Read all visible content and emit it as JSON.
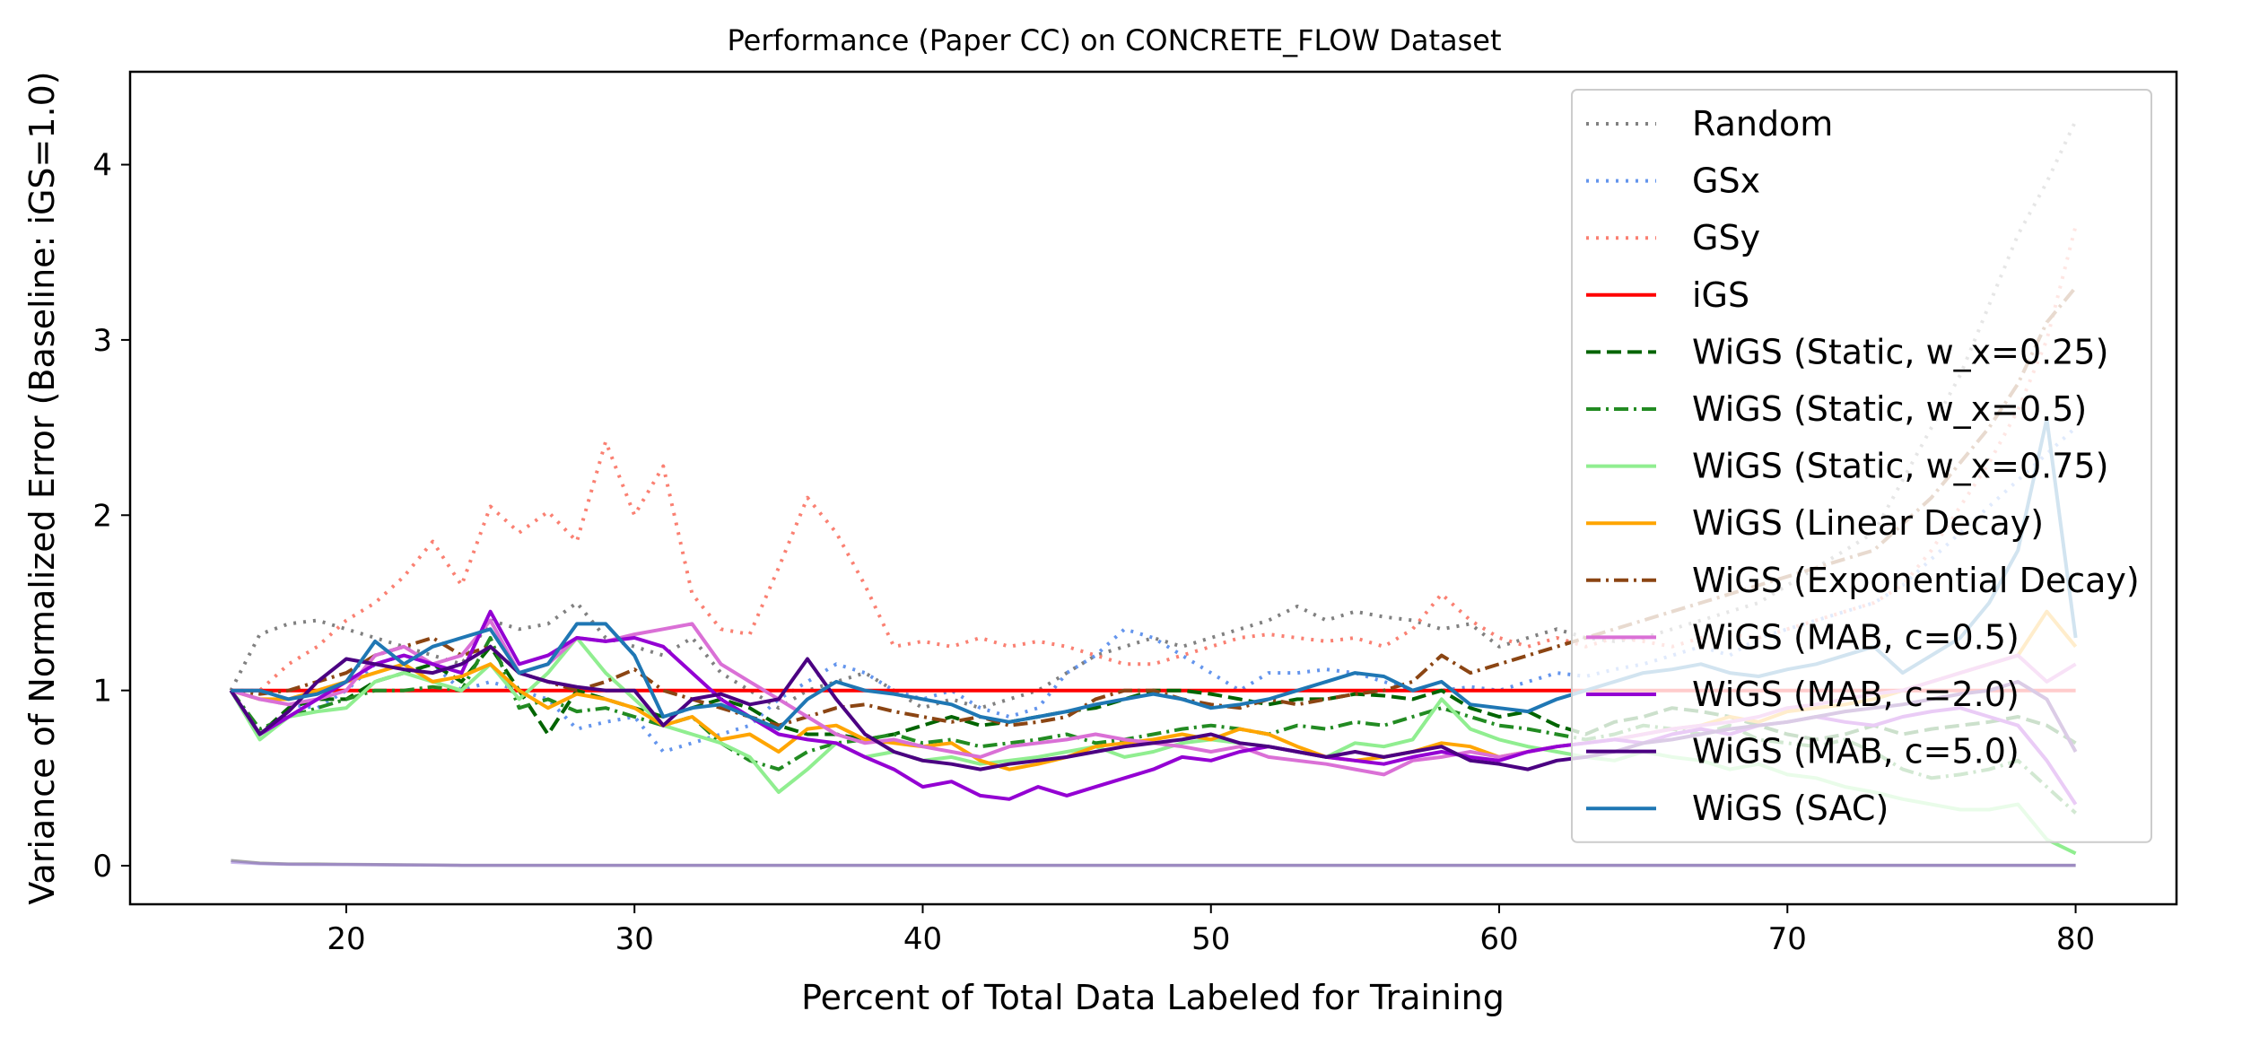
{
  "chart_data": {
    "type": "line",
    "title": "Performance (Paper CC) on CONCRETE_FLOW Dataset",
    "xlabel": "Percent of Total Data Labeled for Training",
    "ylabel": "Variance of Normalized Error (Baseline: iGS=1.0)",
    "xlim": [
      12.5,
      83.5
    ],
    "ylim": [
      -0.22,
      4.53
    ],
    "xticks": [
      20,
      30,
      40,
      50,
      60,
      70,
      80
    ],
    "yticks": [
      0,
      1,
      2,
      3,
      4
    ],
    "grid": false,
    "legend_position": "top-right",
    "x": [
      16,
      17,
      18,
      19,
      20,
      21,
      22,
      23,
      24,
      25,
      26,
      27,
      28,
      29,
      30,
      31,
      32,
      33,
      34,
      35,
      36,
      37,
      38,
      39,
      40,
      41,
      42,
      43,
      44,
      45,
      46,
      47,
      48,
      49,
      50,
      51,
      52,
      53,
      54,
      55,
      56,
      57,
      58,
      59,
      60,
      61,
      62,
      63,
      64,
      65,
      66,
      67,
      68,
      69,
      70,
      71,
      72,
      73,
      74,
      75,
      76,
      77,
      78,
      79,
      80
    ],
    "series": [
      {
        "name": "Random",
        "color": "#808080",
        "dash": "dot",
        "values": [
          1.0,
          1.32,
          1.38,
          1.4,
          1.35,
          1.3,
          1.25,
          1.2,
          1.15,
          1.4,
          1.35,
          1.38,
          1.5,
          1.3,
          1.25,
          1.2,
          1.3,
          1.1,
          1.0,
          0.9,
          1.0,
          1.05,
          1.1,
          1.0,
          0.9,
          0.95,
          0.9,
          0.95,
          1.0,
          1.1,
          1.2,
          1.25,
          1.3,
          1.25,
          1.3,
          1.35,
          1.4,
          1.48,
          1.4,
          1.45,
          1.42,
          1.4,
          1.35,
          1.38,
          1.25,
          1.3,
          1.35,
          1.3,
          1.28,
          1.3,
          1.35,
          1.4,
          1.45,
          1.5,
          1.6,
          1.7,
          1.8,
          1.9,
          2.2,
          2.5,
          2.8,
          3.2,
          3.6,
          3.9,
          4.25
        ]
      },
      {
        "name": "GSx",
        "color": "#6495ED",
        "dash": "dot",
        "values": [
          1.0,
          0.95,
          0.92,
          0.9,
          1.0,
          1.15,
          1.2,
          1.15,
          1.0,
          1.05,
          1.0,
          0.95,
          0.78,
          0.82,
          0.85,
          0.65,
          0.7,
          0.75,
          0.8,
          0.95,
          1.05,
          1.15,
          1.1,
          1.0,
          0.95,
          1.0,
          0.9,
          0.85,
          0.9,
          1.1,
          1.2,
          1.35,
          1.3,
          1.2,
          1.1,
          1.0,
          1.1,
          1.1,
          1.12,
          1.1,
          1.05,
          1.0,
          1.0,
          1.02,
          1.0,
          1.05,
          1.1,
          1.08,
          1.12,
          1.15,
          1.2,
          1.25,
          1.2,
          1.3,
          1.35,
          1.4,
          1.45,
          1.5,
          1.6,
          1.75,
          1.9,
          2.05,
          2.2,
          2.35,
          2.5
        ]
      },
      {
        "name": "GSy",
        "color": "#FA8072",
        "dash": "dot",
        "values": [
          1.0,
          1.0,
          1.15,
          1.25,
          1.4,
          1.5,
          1.65,
          1.85,
          1.6,
          2.05,
          1.9,
          2.02,
          1.85,
          2.42,
          2.0,
          2.28,
          1.55,
          1.35,
          1.32,
          1.7,
          2.1,
          1.9,
          1.6,
          1.25,
          1.28,
          1.25,
          1.3,
          1.25,
          1.28,
          1.25,
          1.2,
          1.15,
          1.15,
          1.2,
          1.25,
          1.3,
          1.32,
          1.3,
          1.28,
          1.3,
          1.25,
          1.35,
          1.55,
          1.4,
          1.3,
          1.25,
          1.3,
          1.25,
          1.3,
          1.28,
          1.25,
          1.3,
          1.32,
          1.3,
          1.35,
          1.4,
          1.45,
          1.5,
          1.6,
          1.8,
          2.05,
          2.3,
          2.6,
          3.0,
          3.65
        ]
      },
      {
        "name": "iGS",
        "color": "#FF0000",
        "dash": "solid",
        "values": [
          1,
          1,
          1,
          1,
          1,
          1,
          1,
          1,
          1,
          1,
          1,
          1,
          1,
          1,
          1,
          1,
          1,
          1,
          1,
          1,
          1,
          1,
          1,
          1,
          1,
          1,
          1,
          1,
          1,
          1,
          1,
          1,
          1,
          1,
          1,
          1,
          1,
          1,
          1,
          1,
          1,
          1,
          1,
          1,
          1,
          1,
          1,
          1,
          1,
          1,
          1,
          1,
          1,
          1,
          1,
          1,
          1,
          1,
          1,
          1,
          1,
          1,
          1,
          1,
          1
        ]
      },
      {
        "name": "WiGS (Static, w_x=0.25)",
        "color": "#006400",
        "dash": "dash",
        "values": [
          1.0,
          0.75,
          0.9,
          0.95,
          0.95,
          1.05,
          1.1,
          1.15,
          1.05,
          1.25,
          1.0,
          0.75,
          1.0,
          0.95,
          0.9,
          0.85,
          0.9,
          0.95,
          0.9,
          0.8,
          0.75,
          0.75,
          0.72,
          0.75,
          0.8,
          0.85,
          0.8,
          0.82,
          0.85,
          0.88,
          0.9,
          0.95,
          1.0,
          1.0,
          0.98,
          0.95,
          0.92,
          0.95,
          0.95,
          0.98,
          0.97,
          0.95,
          1.0,
          0.9,
          0.85,
          0.88,
          0.8,
          0.75,
          0.82,
          0.85,
          0.9,
          0.88,
          0.85,
          0.8,
          0.75,
          0.72,
          0.75,
          0.8,
          0.75,
          0.78,
          0.8,
          0.82,
          0.85,
          0.8,
          0.7
        ]
      },
      {
        "name": "WiGS (Static, w_x=0.5)",
        "color": "#228B22",
        "dash": "dashdot",
        "values": [
          1.0,
          0.78,
          0.85,
          0.9,
          0.95,
          1.0,
          1.0,
          1.02,
          1.0,
          1.3,
          0.9,
          0.95,
          0.88,
          0.9,
          0.85,
          0.8,
          0.85,
          0.7,
          0.6,
          0.55,
          0.65,
          0.7,
          0.72,
          0.75,
          0.7,
          0.72,
          0.68,
          0.7,
          0.72,
          0.75,
          0.7,
          0.72,
          0.75,
          0.78,
          0.8,
          0.78,
          0.75,
          0.8,
          0.78,
          0.82,
          0.8,
          0.85,
          0.9,
          0.85,
          0.8,
          0.78,
          0.75,
          0.72,
          0.75,
          0.8,
          0.78,
          0.75,
          0.8,
          0.72,
          0.7,
          0.68,
          0.72,
          0.65,
          0.55,
          0.5,
          0.52,
          0.55,
          0.6,
          0.45,
          0.3
        ]
      },
      {
        "name": "WiGS (Static, w_x=0.75)",
        "color": "#90EE90",
        "dash": "solid",
        "values": [
          1.0,
          0.72,
          0.85,
          0.88,
          0.9,
          1.05,
          1.1,
          1.05,
          1.0,
          1.15,
          0.95,
          1.1,
          1.3,
          1.1,
          0.95,
          0.8,
          0.75,
          0.7,
          0.62,
          0.42,
          0.55,
          0.7,
          0.62,
          0.65,
          0.6,
          0.62,
          0.58,
          0.6,
          0.62,
          0.65,
          0.68,
          0.62,
          0.65,
          0.7,
          0.72,
          0.7,
          0.68,
          0.65,
          0.62,
          0.7,
          0.68,
          0.72,
          0.95,
          0.78,
          0.72,
          0.68,
          0.65,
          0.62,
          0.6,
          0.65,
          0.62,
          0.6,
          0.55,
          0.58,
          0.52,
          0.5,
          0.45,
          0.42,
          0.38,
          0.35,
          0.32,
          0.32,
          0.35,
          0.15,
          0.07
        ]
      },
      {
        "name": "WiGS (Linear Decay)",
        "color": "#FFA500",
        "dash": "solid",
        "values": [
          1.0,
          0.95,
          0.95,
          1.0,
          1.05,
          1.1,
          1.15,
          1.05,
          1.08,
          1.15,
          1.0,
          0.9,
          0.98,
          0.95,
          0.9,
          0.8,
          0.85,
          0.72,
          0.75,
          0.65,
          0.78,
          0.8,
          0.72,
          0.7,
          0.68,
          0.7,
          0.6,
          0.55,
          0.58,
          0.62,
          0.68,
          0.7,
          0.72,
          0.75,
          0.72,
          0.78,
          0.75,
          0.68,
          0.62,
          0.6,
          0.62,
          0.65,
          0.7,
          0.68,
          0.62,
          0.65,
          0.68,
          0.7,
          0.72,
          0.75,
          0.78,
          0.8,
          0.85,
          0.82,
          0.88,
          0.9,
          0.92,
          0.95,
          1.0,
          1.05,
          1.1,
          1.15,
          1.2,
          1.45,
          1.25
        ]
      },
      {
        "name": "WiGS (Exponential Decay)",
        "color": "#8B4513",
        "dash": "dashdot",
        "values": [
          1.0,
          0.98,
          1.0,
          1.05,
          1.1,
          1.2,
          1.25,
          1.3,
          1.2,
          1.25,
          1.1,
          1.05,
          1.0,
          1.05,
          1.12,
          1.0,
          0.95,
          0.9,
          0.85,
          0.8,
          0.85,
          0.9,
          0.92,
          0.88,
          0.85,
          0.82,
          0.85,
          0.8,
          0.82,
          0.85,
          0.95,
          1.0,
          1.0,
          0.95,
          0.92,
          0.9,
          0.95,
          0.92,
          0.95,
          0.98,
          1.0,
          1.05,
          1.2,
          1.1,
          1.15,
          1.2,
          1.25,
          1.3,
          1.35,
          1.4,
          1.45,
          1.5,
          1.55,
          1.6,
          1.65,
          1.7,
          1.75,
          1.8,
          1.95,
          2.1,
          2.3,
          2.5,
          2.75,
          3.1,
          3.3
        ]
      },
      {
        "name": "WiGS (MAB, c=0.5)",
        "color": "#DA70D6",
        "dash": "solid",
        "values": [
          1.0,
          0.95,
          0.92,
          0.95,
          1.0,
          1.2,
          1.25,
          1.15,
          1.2,
          1.4,
          1.1,
          1.15,
          1.3,
          1.28,
          1.32,
          1.35,
          1.38,
          1.15,
          1.05,
          0.95,
          0.85,
          0.75,
          0.7,
          0.72,
          0.68,
          0.65,
          0.62,
          0.68,
          0.7,
          0.72,
          0.75,
          0.72,
          0.7,
          0.68,
          0.65,
          0.68,
          0.62,
          0.6,
          0.58,
          0.55,
          0.52,
          0.6,
          0.62,
          0.65,
          0.62,
          0.65,
          0.68,
          0.7,
          0.72,
          0.75,
          0.78,
          0.8,
          0.82,
          0.85,
          0.9,
          0.92,
          0.95,
          0.98,
          1.0,
          1.05,
          1.1,
          1.15,
          1.2,
          1.05,
          1.15
        ]
      },
      {
        "name": "WiGS (MAB, c=2.0)",
        "color": "#9400D3",
        "dash": "solid",
        "values": [
          1.0,
          0.75,
          0.85,
          0.95,
          1.05,
          1.15,
          1.2,
          1.15,
          1.1,
          1.45,
          1.15,
          1.2,
          1.3,
          1.28,
          1.3,
          1.25,
          1.1,
          0.95,
          0.85,
          0.75,
          0.72,
          0.7,
          0.62,
          0.55,
          0.45,
          0.48,
          0.4,
          0.38,
          0.45,
          0.4,
          0.45,
          0.5,
          0.55,
          0.62,
          0.6,
          0.65,
          0.68,
          0.65,
          0.62,
          0.6,
          0.58,
          0.62,
          0.65,
          0.62,
          0.6,
          0.65,
          0.68,
          0.7,
          0.72,
          0.7,
          0.75,
          0.78,
          0.75,
          0.8,
          0.82,
          0.85,
          0.82,
          0.8,
          0.85,
          0.88,
          0.9,
          0.85,
          0.8,
          0.6,
          0.35
        ]
      },
      {
        "name": "WiGS (MAB, c=5.0)",
        "color": "#4B0082",
        "dash": "solid",
        "values": [
          1.0,
          0.75,
          0.88,
          1.05,
          1.18,
          1.15,
          1.12,
          1.1,
          1.15,
          1.25,
          1.1,
          1.05,
          1.02,
          1.0,
          1.0,
          0.8,
          0.95,
          0.98,
          0.92,
          0.95,
          1.18,
          0.95,
          0.75,
          0.65,
          0.6,
          0.58,
          0.55,
          0.58,
          0.6,
          0.62,
          0.65,
          0.68,
          0.7,
          0.72,
          0.75,
          0.7,
          0.68,
          0.65,
          0.62,
          0.65,
          0.62,
          0.65,
          0.68,
          0.6,
          0.58,
          0.55,
          0.6,
          0.62,
          0.65,
          0.7,
          0.72,
          0.75,
          0.78,
          0.8,
          0.82,
          0.85,
          0.88,
          0.9,
          0.92,
          0.95,
          0.98,
          1.0,
          1.05,
          0.95,
          0.65
        ]
      },
      {
        "name": "WiGS (SAC)",
        "color": "#1F77B4",
        "dash": "solid",
        "values": [
          1.0,
          1.0,
          0.95,
          0.98,
          1.05,
          1.28,
          1.15,
          1.25,
          1.3,
          1.35,
          1.1,
          1.15,
          1.38,
          1.38,
          1.2,
          0.85,
          0.9,
          0.92,
          0.85,
          0.78,
          0.95,
          1.05,
          1.0,
          0.98,
          0.95,
          0.92,
          0.85,
          0.82,
          0.85,
          0.88,
          0.92,
          0.95,
          0.98,
          0.95,
          0.9,
          0.92,
          0.95,
          1.0,
          1.05,
          1.1,
          1.08,
          1.0,
          1.05,
          0.92,
          0.9,
          0.88,
          0.95,
          1.0,
          1.05,
          1.1,
          1.12,
          1.15,
          1.1,
          1.08,
          1.12,
          1.15,
          1.2,
          1.25,
          1.1,
          1.2,
          1.3,
          1.5,
          1.8,
          2.55,
          1.3
        ]
      }
    ],
    "baseline_bands": [
      {
        "color": "#808080",
        "opacity": 0.7,
        "values_start": [
          0.03,
          0.015,
          0.01,
          0.01,
          0.008,
          0.006,
          0.005,
          0.004
        ]
      },
      {
        "color": "#9370DB",
        "opacity": 0.5,
        "values_start": [
          0.02,
          0.012,
          0.008,
          0.007,
          0.006,
          0.005,
          0.004,
          0.003
        ]
      }
    ]
  }
}
